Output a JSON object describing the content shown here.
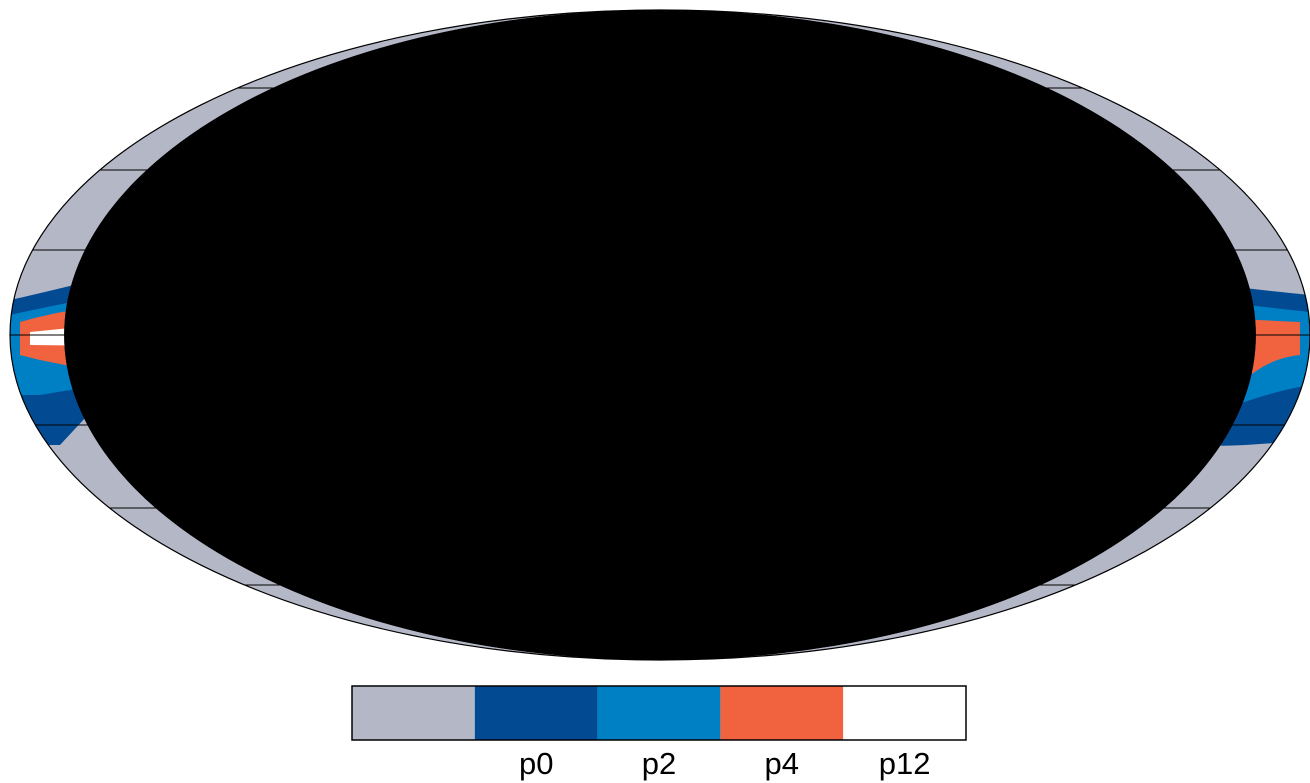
{
  "colorbar": {
    "colors": [
      "#b4b7c5",
      "#024b92",
      "#0080c4",
      "#f1633f",
      "#ffffff"
    ],
    "labels": [
      "p0",
      "p2",
      "p4",
      "p12"
    ]
  }
}
